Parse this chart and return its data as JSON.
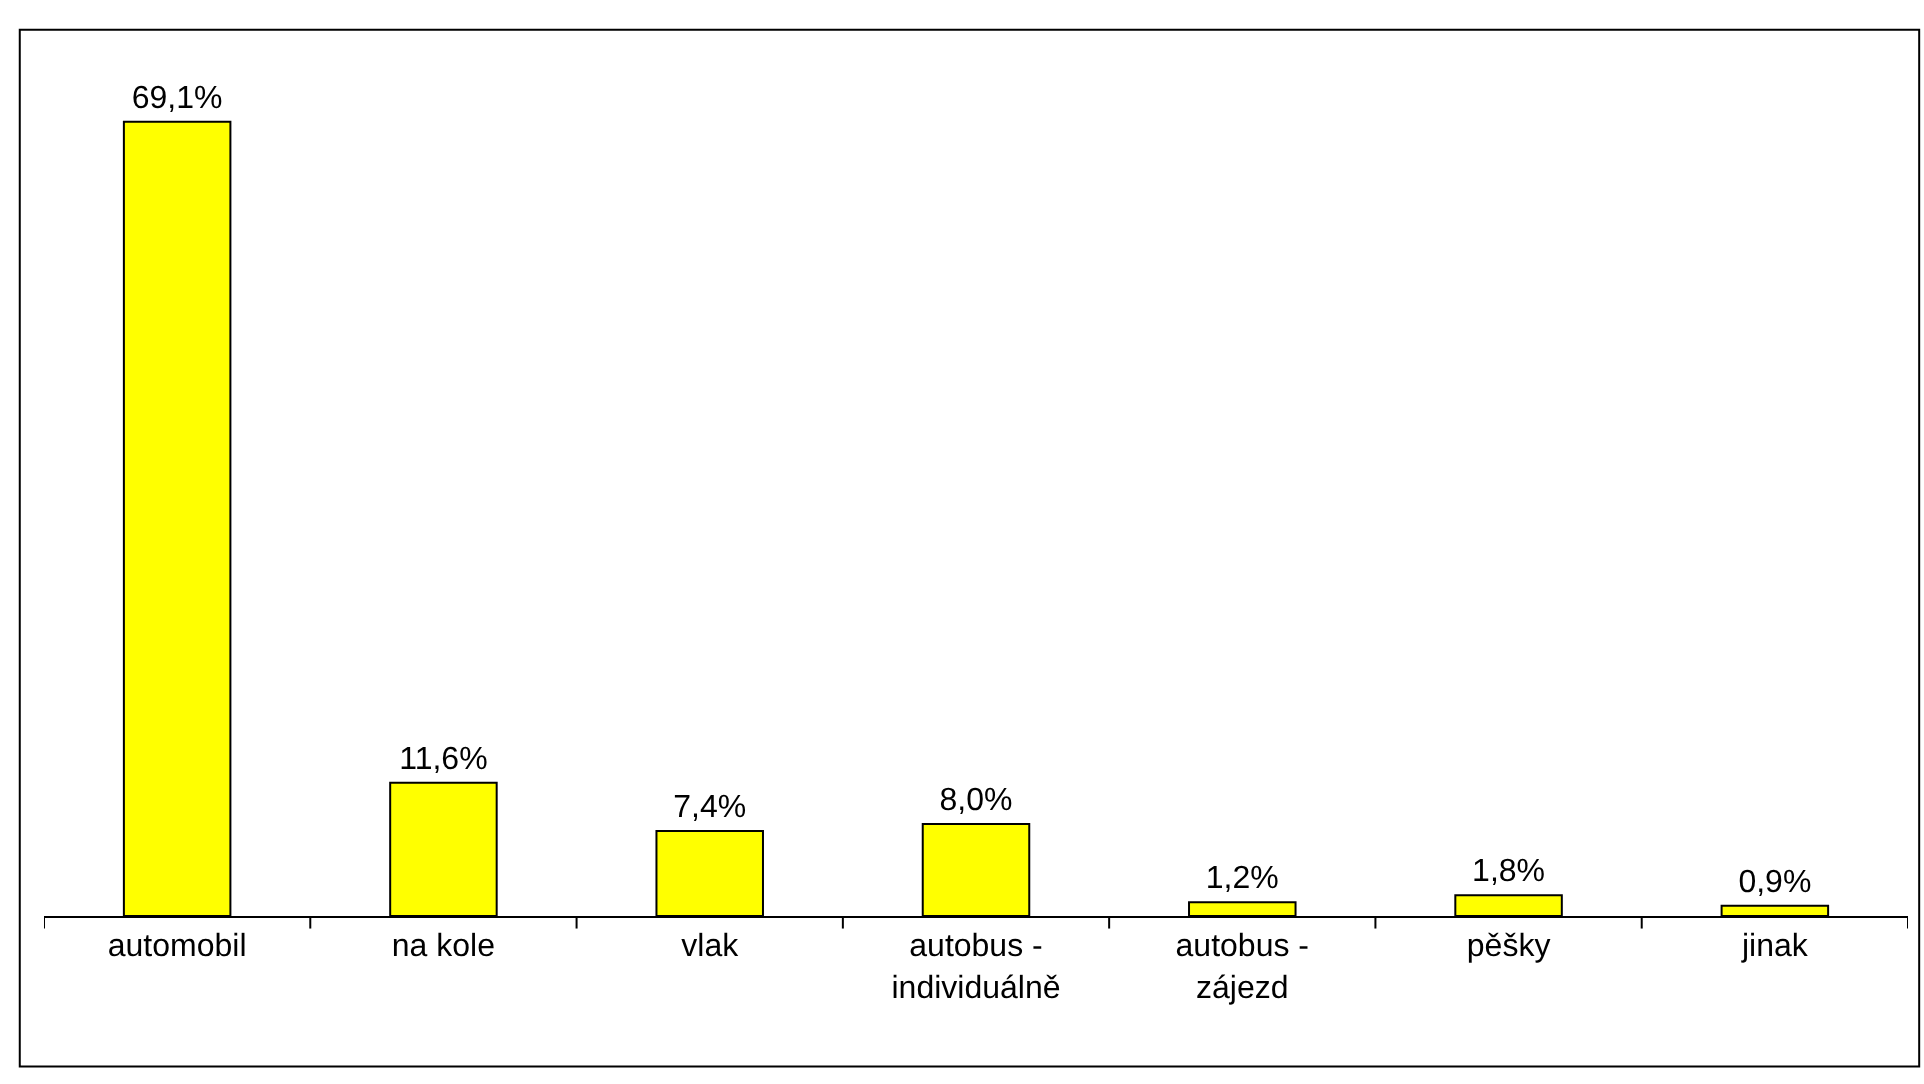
{
  "chart_data": {
    "type": "bar",
    "categories": [
      "automobil",
      "na kole",
      "vlak",
      "autobus -\nindividuálně",
      "autobus -\nzájezd",
      "pěšky",
      "jinak"
    ],
    "values": [
      69.1,
      11.6,
      7.4,
      8.0,
      1.2,
      1.8,
      0.9
    ],
    "value_labels": [
      "69,1%",
      "11,6%",
      "7,4%",
      "8,0%",
      "1,2%",
      "1,8%",
      "0,9%"
    ],
    "color": "#ffff00",
    "legend": false
  }
}
